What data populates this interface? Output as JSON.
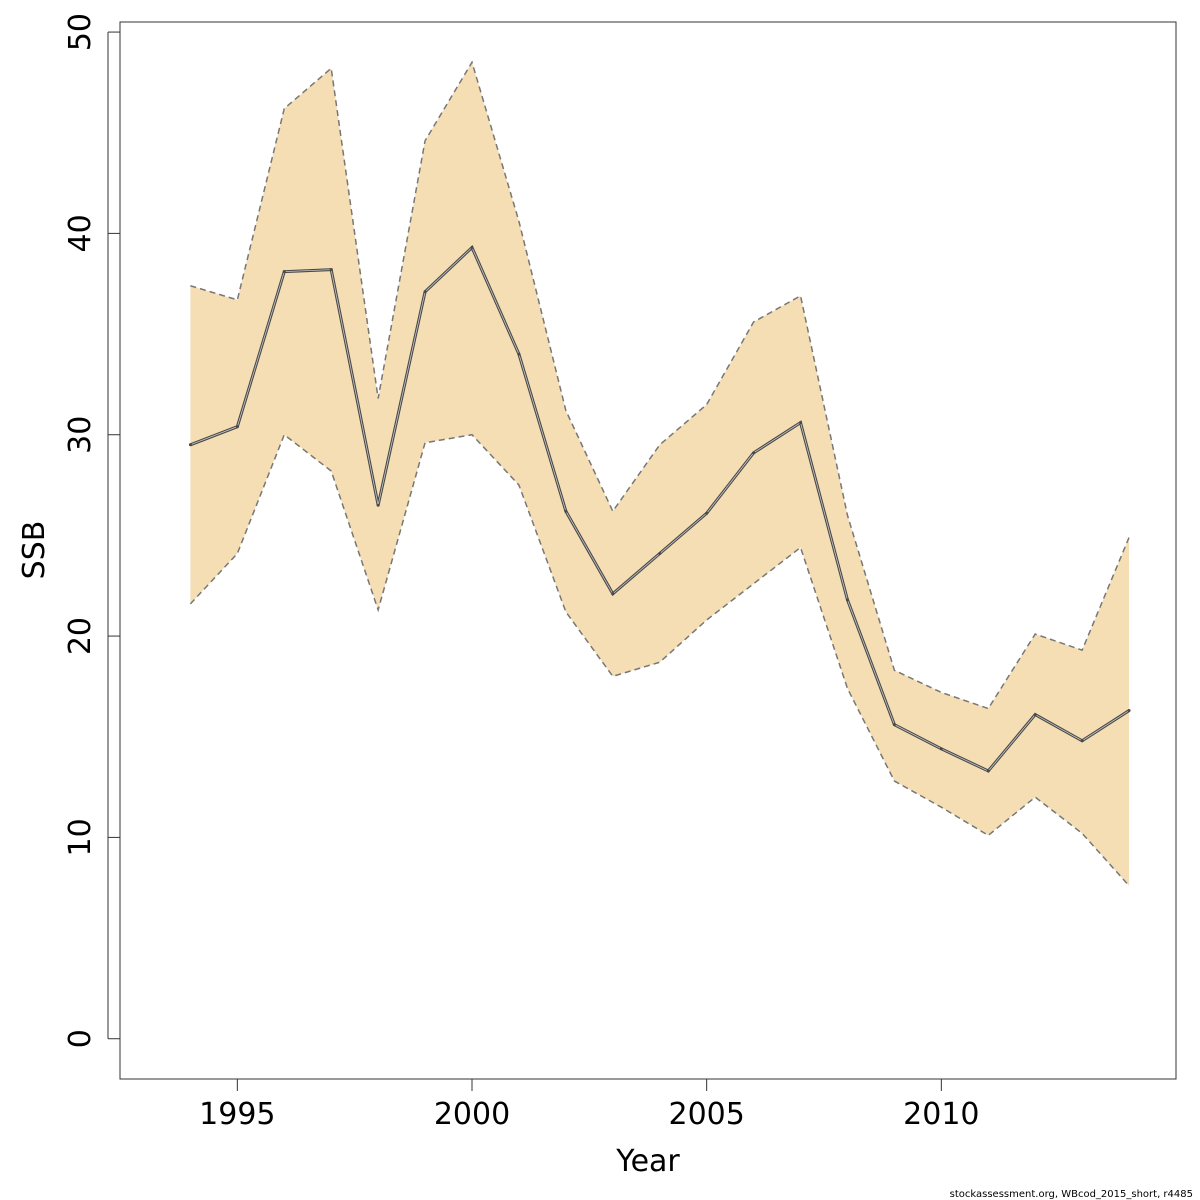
{
  "chart_data": {
    "type": "area",
    "title": "",
    "xlabel": "Year",
    "ylabel": "SSB",
    "xlim": [
      1992.5,
      2015
    ],
    "ylim": [
      -2,
      50.5
    ],
    "x_ticks": [
      1995,
      2000,
      2005,
      2010
    ],
    "y_ticks": [
      0,
      10,
      20,
      30,
      40,
      50
    ],
    "grid": false,
    "legend": "none",
    "band_color": "#F5DEB3",
    "estimate_color": "#4a4a4a",
    "bound_color": "#777777",
    "x": [
      1994,
      1995,
      1996,
      1997,
      1998,
      1999,
      2000,
      2001,
      2002,
      2003,
      2004,
      2005,
      2006,
      2007,
      2008,
      2009,
      2010,
      2011,
      2012,
      2013,
      2014
    ],
    "series": [
      {
        "role": "estimate",
        "values": [
          29.5,
          30.4,
          38.1,
          38.2,
          26.5,
          37.1,
          39.3,
          34.0,
          26.2,
          22.1,
          24.1,
          26.1,
          29.1,
          30.6,
          21.8,
          15.6,
          14.4,
          13.3,
          16.1,
          14.8,
          16.3
        ]
      },
      {
        "role": "upper",
        "values": [
          37.4,
          36.7,
          46.2,
          48.2,
          31.8,
          44.6,
          48.5,
          40.6,
          31.2,
          26.2,
          29.5,
          31.5,
          35.6,
          36.9,
          26.0,
          18.3,
          17.2,
          16.4,
          20.1,
          19.3,
          24.9
        ]
      },
      {
        "role": "lower",
        "values": [
          21.6,
          24.1,
          30.0,
          28.2,
          21.3,
          29.6,
          30.0,
          27.5,
          21.2,
          18.0,
          18.7,
          20.8,
          22.6,
          24.4,
          17.4,
          12.8,
          11.5,
          10.1,
          12.0,
          10.2,
          7.6
        ]
      }
    ]
  },
  "footer": "stockassessment.org, WBcod_2015_short, r4485"
}
